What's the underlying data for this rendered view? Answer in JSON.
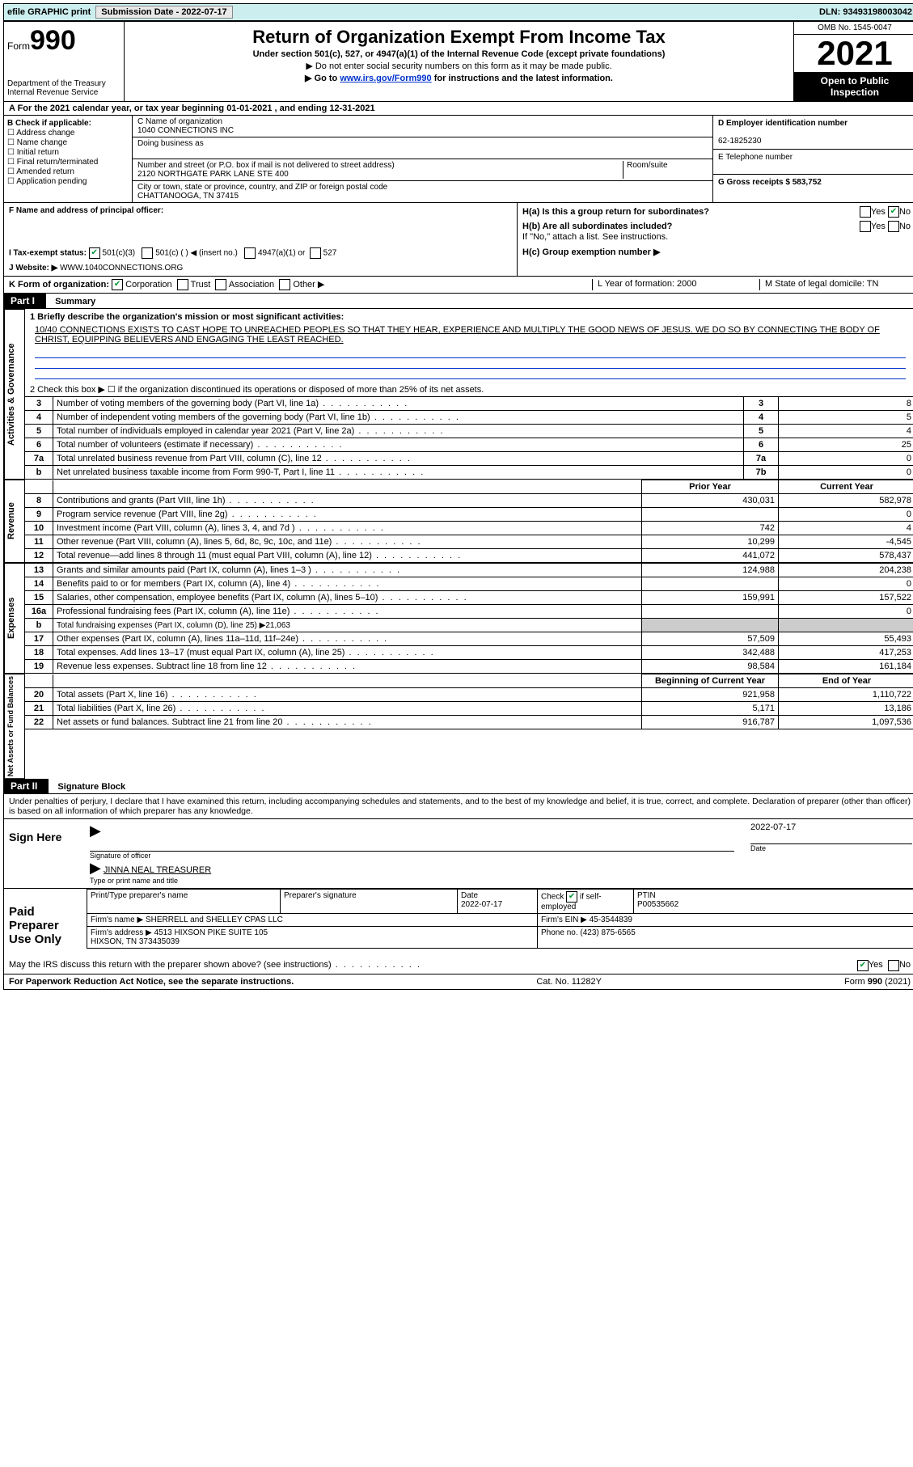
{
  "topbar": {
    "efile": "efile GRAPHIC print",
    "submission_label": "Submission Date - 2022-07-17",
    "dln": "DLN: 93493198003042"
  },
  "header": {
    "form_word": "Form",
    "form_num": "990",
    "dept": "Department of the Treasury\nInternal Revenue Service",
    "title": "Return of Organization Exempt From Income Tax",
    "subtitle": "Under section 501(c), 527, or 4947(a)(1) of the Internal Revenue Code (except private foundations)",
    "note1": "▶ Do not enter social security numbers on this form as it may be made public.",
    "note2_pre": "▶ Go to ",
    "note2_link": "www.irs.gov/Form990",
    "note2_post": " for instructions and the latest information.",
    "omb": "OMB No. 1545-0047",
    "year": "2021",
    "inspect": "Open to Public Inspection"
  },
  "rowA": "A For the 2021 calendar year, or tax year beginning 01-01-2021   , and ending 12-31-2021",
  "colB": {
    "label": "B Check if applicable:",
    "addr": "Address change",
    "name": "Name change",
    "initial": "Initial return",
    "final": "Final return/terminated",
    "amended": "Amended return",
    "app": "Application pending"
  },
  "colC": {
    "name_lbl": "C Name of organization",
    "name": "1040 CONNECTIONS INC",
    "dba_lbl": "Doing business as",
    "dba": "",
    "street_lbl": "Number and street (or P.O. box if mail is not delivered to street address)",
    "room_lbl": "Room/suite",
    "street": "2120 NORTHGATE PARK LANE STE 400",
    "city_lbl": "City or town, state or province, country, and ZIP or foreign postal code",
    "city": "CHATTANOOGA, TN  37415"
  },
  "colDE": {
    "d_lbl": "D Employer identification number",
    "d_val": "62-1825230",
    "e_lbl": "E Telephone number",
    "e_val": "",
    "g_lbl": "G Gross receipts $ 583,752"
  },
  "rowF": {
    "f_lbl": "F  Name and address of principal officer:",
    "h_a": "H(a)  Is this a group return for subordinates?",
    "h_b": "H(b)  Are all subordinates included?",
    "h_b_note": "If \"No,\" attach a list. See instructions.",
    "h_c": "H(c)  Group exemption number ▶",
    "yes": "Yes",
    "no": "No"
  },
  "rowI": {
    "label": "I   Tax-exempt status:",
    "c3": "501(c)(3)",
    "c": "501(c) (  ) ◀ (insert no.)",
    "a1": "4947(a)(1) or",
    "s527": "527"
  },
  "rowJ": {
    "label": "J   Website: ▶",
    "val": "WWW.1040CONNECTIONS.ORG"
  },
  "rowK": {
    "label": "K Form of organization:",
    "corp": "Corporation",
    "trust": "Trust",
    "assoc": "Association",
    "other": "Other ▶",
    "l": "L Year of formation: 2000",
    "m": "M State of legal domicile: TN"
  },
  "partI": {
    "hdr": "Part I",
    "title": "Summary"
  },
  "governance": {
    "label": "Activities & Governance",
    "line1_lbl": "1  Briefly describe the organization's mission or most significant activities:",
    "line1_val": "10/40 CONNECTIONS EXISTS TO CAST HOPE TO UNREACHED PEOPLES SO THAT THEY HEAR, EXPERIENCE AND MULTIPLY THE GOOD NEWS OF JESUS. WE DO SO BY CONNECTING THE BODY OF CHRIST, EQUIPPING BELIEVERS AND ENGAGING THE LEAST REACHED.",
    "line2": "2   Check this box ▶ ☐ if the organization discontinued its operations or disposed of more than 25% of its net assets.",
    "rows": [
      {
        "no": "3",
        "desc": "Number of voting members of the governing body (Part VI, line 1a)",
        "k": "3",
        "v": "8"
      },
      {
        "no": "4",
        "desc": "Number of independent voting members of the governing body (Part VI, line 1b)",
        "k": "4",
        "v": "5"
      },
      {
        "no": "5",
        "desc": "Total number of individuals employed in calendar year 2021 (Part V, line 2a)",
        "k": "5",
        "v": "4"
      },
      {
        "no": "6",
        "desc": "Total number of volunteers (estimate if necessary)",
        "k": "6",
        "v": "25"
      },
      {
        "no": "7a",
        "desc": "Total unrelated business revenue from Part VIII, column (C), line 12",
        "k": "7a",
        "v": "0"
      },
      {
        "no": "b",
        "desc": "Net unrelated business taxable income from Form 990-T, Part I, line 11",
        "k": "7b",
        "v": "0"
      }
    ]
  },
  "revenue": {
    "label": "Revenue",
    "prior_hdr": "Prior Year",
    "curr_hdr": "Current Year",
    "rows": [
      {
        "no": "8",
        "desc": "Contributions and grants (Part VIII, line 1h)",
        "prior": "430,031",
        "curr": "582,978"
      },
      {
        "no": "9",
        "desc": "Program service revenue (Part VIII, line 2g)",
        "prior": "",
        "curr": "0"
      },
      {
        "no": "10",
        "desc": "Investment income (Part VIII, column (A), lines 3, 4, and 7d )",
        "prior": "742",
        "curr": "4"
      },
      {
        "no": "11",
        "desc": "Other revenue (Part VIII, column (A), lines 5, 6d, 8c, 9c, 10c, and 11e)",
        "prior": "10,299",
        "curr": "-4,545"
      },
      {
        "no": "12",
        "desc": "Total revenue—add lines 8 through 11 (must equal Part VIII, column (A), line 12)",
        "prior": "441,072",
        "curr": "578,437"
      }
    ]
  },
  "expenses": {
    "label": "Expenses",
    "rows": [
      {
        "no": "13",
        "desc": "Grants and similar amounts paid (Part IX, column (A), lines 1–3 )",
        "prior": "124,988",
        "curr": "204,238"
      },
      {
        "no": "14",
        "desc": "Benefits paid to or for members (Part IX, column (A), line 4)",
        "prior": "",
        "curr": "0"
      },
      {
        "no": "15",
        "desc": "Salaries, other compensation, employee benefits (Part IX, column (A), lines 5–10)",
        "prior": "159,991",
        "curr": "157,522"
      },
      {
        "no": "16a",
        "desc": "Professional fundraising fees (Part IX, column (A), line 11e)",
        "prior": "",
        "curr": "0"
      },
      {
        "no": "b",
        "desc": "Total fundraising expenses (Part IX, column (D), line 25) ▶21,063",
        "prior": "__GREY__",
        "curr": "__GREY__"
      },
      {
        "no": "17",
        "desc": "Other expenses (Part IX, column (A), lines 11a–11d, 11f–24e)",
        "prior": "57,509",
        "curr": "55,493"
      },
      {
        "no": "18",
        "desc": "Total expenses. Add lines 13–17 (must equal Part IX, column (A), line 25)",
        "prior": "342,488",
        "curr": "417,253"
      },
      {
        "no": "19",
        "desc": "Revenue less expenses. Subtract line 18 from line 12",
        "prior": "98,584",
        "curr": "161,184"
      }
    ]
  },
  "netassets": {
    "label": "Net Assets or Fund Balances",
    "beg_hdr": "Beginning of Current Year",
    "end_hdr": "End of Year",
    "rows": [
      {
        "no": "20",
        "desc": "Total assets (Part X, line 16)",
        "prior": "921,958",
        "curr": "1,110,722"
      },
      {
        "no": "21",
        "desc": "Total liabilities (Part X, line 26)",
        "prior": "5,171",
        "curr": "13,186"
      },
      {
        "no": "22",
        "desc": "Net assets or fund balances. Subtract line 21 from line 20",
        "prior": "916,787",
        "curr": "1,097,536"
      }
    ]
  },
  "partII": {
    "hdr": "Part II",
    "title": "Signature Block"
  },
  "sig": {
    "decl": "Under penalties of perjury, I declare that I have examined this return, including accompanying schedules and statements, and to the best of my knowledge and belief, it is true, correct, and complete. Declaration of preparer (other than officer) is based on all information of which preparer has any knowledge.",
    "sign_here": "Sign Here",
    "sig_officer": "Signature of officer",
    "date_lbl": "Date",
    "date_val": "2022-07-17",
    "name_title": "JINNA NEAL TREASURER",
    "name_title_lbl": "Type or print name and title"
  },
  "prep": {
    "label": "Paid Preparer Use Only",
    "r1": {
      "c1": "Print/Type preparer's name",
      "c2": "Preparer's signature",
      "c3": "Date\n2022-07-17",
      "c4_a": "Check ",
      "c4_b": " if self-employed",
      "c5": "PTIN\nP00535662"
    },
    "r2": {
      "c1": "Firm's name    ▶ SHERRELL and SHELLEY CPAS LLC",
      "c2": "Firm's EIN ▶ 45-3544839"
    },
    "r3": {
      "c1": "Firm's address ▶ 4513 HIXSON PIKE SUITE 105\n                         HIXSON, TN  373435039",
      "c2": "Phone no. (423) 875-6565"
    }
  },
  "footer": {
    "q": "May the IRS discuss this return with the preparer shown above? (see instructions)",
    "yes": "Yes",
    "no": "No",
    "pra": "For Paperwork Reduction Act Notice, see the separate instructions.",
    "cat": "Cat. No. 11282Y",
    "form": "Form 990 (2021)"
  }
}
